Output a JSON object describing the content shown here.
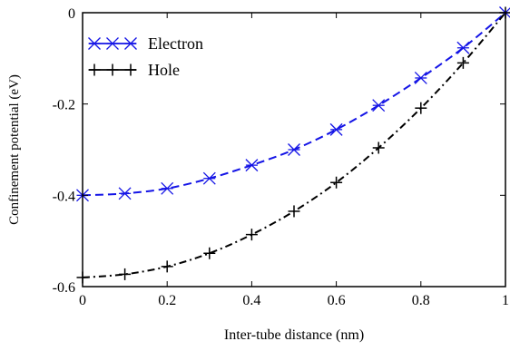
{
  "chart_data": {
    "type": "line",
    "title": "",
    "xlabel": "Inter-tube distance (nm)",
    "ylabel": "Confinement potential (eV)",
    "xlim": [
      0,
      1
    ],
    "ylim": [
      -0.6,
      0
    ],
    "x_ticks": [
      0,
      0.2,
      0.4,
      0.6,
      0.8,
      1
    ],
    "x_tick_labels": [
      "0",
      "0.2",
      "0.4",
      "0.6",
      "0.8",
      "1"
    ],
    "y_ticks": [
      0,
      -0.2,
      -0.4,
      -0.6
    ],
    "y_tick_labels": [
      "0",
      "-0.2",
      "-0.4",
      "-0.6"
    ],
    "grid": false,
    "legend_position": "top-left",
    "series": [
      {
        "name": "Electron",
        "color": "#1414e6",
        "marker": "x-star",
        "line_style": "dashed",
        "x": [
          0,
          0.1,
          0.2,
          0.3,
          0.4,
          0.5,
          0.6,
          0.7,
          0.8,
          0.9,
          1.0
        ],
        "y": [
          -0.4,
          -0.396,
          -0.385,
          -0.363,
          -0.334,
          -0.3,
          -0.256,
          -0.203,
          -0.143,
          -0.077,
          0.0
        ]
      },
      {
        "name": "Hole",
        "color": "#000000",
        "marker": "plus",
        "line_style": "dash-dot",
        "x": [
          0,
          0.1,
          0.2,
          0.3,
          0.4,
          0.5,
          0.6,
          0.7,
          0.8,
          0.9,
          1.0
        ],
        "y": [
          -0.58,
          -0.573,
          -0.556,
          -0.527,
          -0.486,
          -0.435,
          -0.372,
          -0.296,
          -0.209,
          -0.11,
          0.0
        ]
      }
    ]
  }
}
